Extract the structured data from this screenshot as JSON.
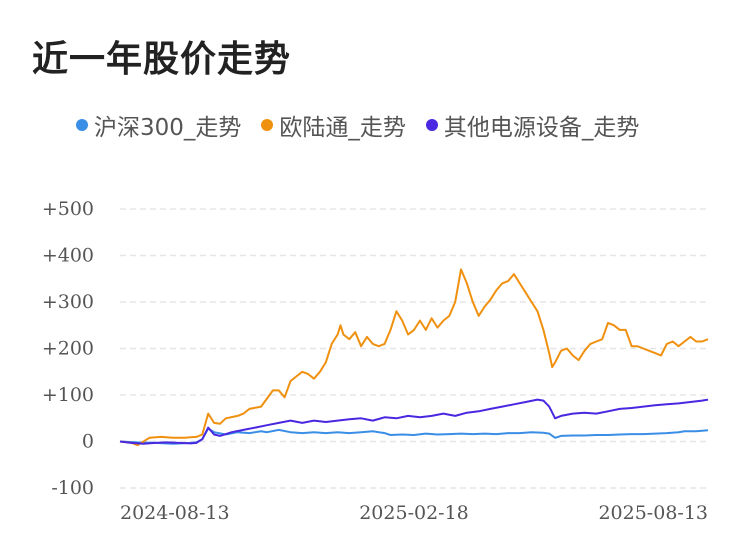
{
  "title": "近一年股价走势",
  "legend": [
    {
      "name": "沪深300_走势",
      "color": "#3a8ee6"
    },
    {
      "name": "欧陆通_走势",
      "color": "#f0900f"
    },
    {
      "name": "其他电源设备_走势",
      "color": "#4a27e0"
    }
  ],
  "chart_data": {
    "type": "line",
    "title": "近一年股价走势",
    "xlabel": "",
    "ylabel": "",
    "ylim": [
      -100,
      500
    ],
    "yticks": [
      500,
      400,
      300,
      200,
      100,
      0,
      -100
    ],
    "ytick_labels": [
      "+500",
      "+400",
      "+300",
      "+200",
      "+100",
      "0",
      "-100"
    ],
    "x_tick_labels": [
      "2024-08-13",
      "2025-02-18",
      "2025-08-13"
    ],
    "x_range": [
      0,
      100
    ],
    "grid": true,
    "legend_position": "top",
    "series": [
      {
        "name": "沪深300_走势",
        "color": "#3a8ee6",
        "points": [
          [
            0,
            0
          ],
          [
            3,
            -2
          ],
          [
            6,
            -3
          ],
          [
            9,
            -5
          ],
          [
            12,
            -3
          ],
          [
            13,
            -2
          ],
          [
            14,
            5
          ],
          [
            15,
            28
          ],
          [
            16,
            20
          ],
          [
            18,
            15
          ],
          [
            20,
            20
          ],
          [
            22,
            18
          ],
          [
            24,
            22
          ],
          [
            25,
            20
          ],
          [
            27,
            25
          ],
          [
            29,
            20
          ],
          [
            31,
            18
          ],
          [
            33,
            20
          ],
          [
            35,
            18
          ],
          [
            37,
            20
          ],
          [
            39,
            18
          ],
          [
            41,
            20
          ],
          [
            43,
            22
          ],
          [
            45,
            18
          ],
          [
            46,
            14
          ],
          [
            48,
            15
          ],
          [
            50,
            14
          ],
          [
            52,
            17
          ],
          [
            54,
            15
          ],
          [
            56,
            16
          ],
          [
            58,
            17
          ],
          [
            60,
            16
          ],
          [
            62,
            17
          ],
          [
            64,
            16
          ],
          [
            66,
            18
          ],
          [
            68,
            18
          ],
          [
            70,
            20
          ],
          [
            72,
            19
          ],
          [
            73,
            17
          ],
          [
            74,
            8
          ],
          [
            75,
            12
          ],
          [
            77,
            13
          ],
          [
            79,
            13
          ],
          [
            81,
            14
          ],
          [
            83,
            14
          ],
          [
            85,
            15
          ],
          [
            87,
            16
          ],
          [
            89,
            16
          ],
          [
            91,
            17
          ],
          [
            93,
            18
          ],
          [
            95,
            20
          ],
          [
            96,
            22
          ],
          [
            98,
            22
          ],
          [
            100,
            24
          ]
        ]
      },
      {
        "name": "欧陆通_走势",
        "color": "#f0900f",
        "points": [
          [
            0,
            0
          ],
          [
            2,
            -3
          ],
          [
            3,
            -8
          ],
          [
            5,
            8
          ],
          [
            7,
            10
          ],
          [
            9,
            8
          ],
          [
            11,
            8
          ],
          [
            12,
            9
          ],
          [
            13,
            10
          ],
          [
            14,
            15
          ],
          [
            15,
            60
          ],
          [
            16,
            40
          ],
          [
            17,
            38
          ],
          [
            18,
            50
          ],
          [
            20,
            55
          ],
          [
            21,
            60
          ],
          [
            22,
            70
          ],
          [
            24,
            75
          ],
          [
            26,
            110
          ],
          [
            27,
            110
          ],
          [
            28,
            95
          ],
          [
            29,
            130
          ],
          [
            30,
            140
          ],
          [
            31,
            150
          ],
          [
            32,
            145
          ],
          [
            33,
            135
          ],
          [
            34,
            150
          ],
          [
            35,
            170
          ],
          [
            36,
            210
          ],
          [
            37,
            230
          ],
          [
            37.5,
            250
          ],
          [
            38,
            230
          ],
          [
            39,
            220
          ],
          [
            40,
            235
          ],
          [
            41,
            205
          ],
          [
            42,
            225
          ],
          [
            43,
            210
          ],
          [
            44,
            205
          ],
          [
            45,
            210
          ],
          [
            46,
            240
          ],
          [
            47,
            280
          ],
          [
            48,
            260
          ],
          [
            49,
            230
          ],
          [
            50,
            240
          ],
          [
            51,
            260
          ],
          [
            52,
            240
          ],
          [
            53,
            265
          ],
          [
            54,
            245
          ],
          [
            55,
            260
          ],
          [
            56,
            270
          ],
          [
            57,
            300
          ],
          [
            58,
            370
          ],
          [
            59,
            340
          ],
          [
            60,
            300
          ],
          [
            61,
            270
          ],
          [
            62,
            290
          ],
          [
            63,
            305
          ],
          [
            64,
            325
          ],
          [
            65,
            340
          ],
          [
            66,
            345
          ],
          [
            67,
            360
          ],
          [
            68,
            340
          ],
          [
            69,
            320
          ],
          [
            70,
            300
          ],
          [
            71,
            280
          ],
          [
            72,
            240
          ],
          [
            73,
            190
          ],
          [
            73.5,
            160
          ],
          [
            74,
            170
          ],
          [
            75,
            195
          ],
          [
            76,
            200
          ],
          [
            77,
            185
          ],
          [
            78,
            175
          ],
          [
            79,
            195
          ],
          [
            80,
            210
          ],
          [
            81,
            215
          ],
          [
            82,
            220
          ],
          [
            83,
            255
          ],
          [
            84,
            250
          ],
          [
            85,
            240
          ],
          [
            86,
            240
          ],
          [
            87,
            205
          ],
          [
            88,
            205
          ],
          [
            89,
            200
          ],
          [
            90,
            195
          ],
          [
            91,
            190
          ],
          [
            92,
            185
          ],
          [
            93,
            210
          ],
          [
            94,
            215
          ],
          [
            95,
            205
          ],
          [
            96,
            215
          ],
          [
            97,
            225
          ],
          [
            98,
            215
          ],
          [
            99,
            215
          ],
          [
            100,
            220
          ]
        ]
      },
      {
        "name": "其他电源设备_走势",
        "color": "#4a27e0",
        "points": [
          [
            0,
            0
          ],
          [
            2,
            -3
          ],
          [
            4,
            -5
          ],
          [
            6,
            -3
          ],
          [
            8,
            -2
          ],
          [
            10,
            -3
          ],
          [
            12,
            -4
          ],
          [
            13,
            -3
          ],
          [
            14,
            5
          ],
          [
            15,
            30
          ],
          [
            16,
            15
          ],
          [
            17,
            12
          ],
          [
            19,
            20
          ],
          [
            21,
            25
          ],
          [
            23,
            30
          ],
          [
            25,
            35
          ],
          [
            27,
            40
          ],
          [
            29,
            45
          ],
          [
            31,
            40
          ],
          [
            33,
            45
          ],
          [
            35,
            42
          ],
          [
            37,
            45
          ],
          [
            39,
            48
          ],
          [
            41,
            50
          ],
          [
            43,
            45
          ],
          [
            45,
            52
          ],
          [
            47,
            50
          ],
          [
            49,
            55
          ],
          [
            51,
            52
          ],
          [
            53,
            55
          ],
          [
            55,
            60
          ],
          [
            57,
            55
          ],
          [
            59,
            62
          ],
          [
            61,
            65
          ],
          [
            63,
            70
          ],
          [
            65,
            75
          ],
          [
            67,
            80
          ],
          [
            69,
            85
          ],
          [
            71,
            90
          ],
          [
            72,
            88
          ],
          [
            73,
            75
          ],
          [
            74,
            50
          ],
          [
            75,
            55
          ],
          [
            77,
            60
          ],
          [
            79,
            62
          ],
          [
            81,
            60
          ],
          [
            83,
            65
          ],
          [
            85,
            70
          ],
          [
            87,
            72
          ],
          [
            89,
            75
          ],
          [
            91,
            78
          ],
          [
            93,
            80
          ],
          [
            95,
            82
          ],
          [
            97,
            85
          ],
          [
            99,
            88
          ],
          [
            100,
            90
          ]
        ]
      }
    ]
  }
}
